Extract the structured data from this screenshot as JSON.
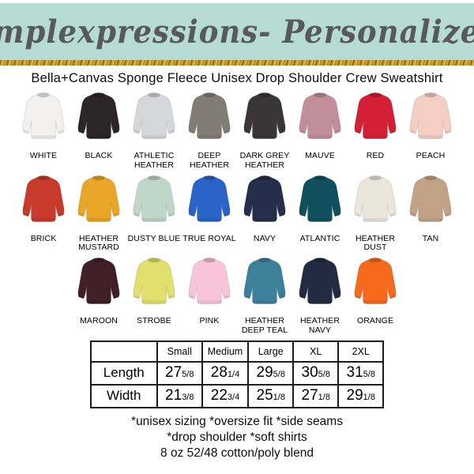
{
  "theme": {
    "banner_bg": "#b5dbd2",
    "banner_text_color": "#58595a",
    "gold_glitter": [
      "#8f6b1f",
      "#caa23d",
      "#e6c968",
      "#b68a2e"
    ],
    "page_bg": "#ffffff",
    "table_border": "#1c1c1c"
  },
  "banner": {
    "title": "Simplexpressions- Personalized!"
  },
  "product_title": "Bella+Canvas Sponge Fleece Unisex Drop Shoulder Crew Sweatshirt",
  "colors": {
    "rows": [
      [
        {
          "name": "WHITE",
          "hex": "#f2f1ef"
        },
        {
          "name": "BLACK",
          "hex": "#2b2527"
        },
        {
          "name": "ATHLETIC HEATHER",
          "hex": "#d5d7db"
        },
        {
          "name": "DEEP HEATHER",
          "hex": "#837c75"
        },
        {
          "name": "DARK GREY HEATHER",
          "hex": "#3a3638"
        },
        {
          "name": "MAUVE",
          "hex": "#c28e9a"
        },
        {
          "name": "RED",
          "hex": "#d42037"
        },
        {
          "name": "PEACH",
          "hex": "#f5cec3"
        }
      ],
      [
        {
          "name": "BRICK",
          "hex": "#c83a2b"
        },
        {
          "name": "HEATHER MUSTARD",
          "hex": "#e9a527"
        },
        {
          "name": "DUSTY BLUE",
          "hex": "#bed7c9"
        },
        {
          "name": "TRUE ROYAL",
          "hex": "#2a63c8"
        },
        {
          "name": "NAVY",
          "hex": "#252e4c"
        },
        {
          "name": "ATLANTIC",
          "hex": "#10505e"
        },
        {
          "name": "HEATHER DUST",
          "hex": "#ebe6dc"
        },
        {
          "name": "TAN",
          "hex": "#c2a287"
        }
      ],
      [
        {
          "name": "MAROON",
          "hex": "#401f29"
        },
        {
          "name": "STROBE",
          "hex": "#dfe06d"
        },
        {
          "name": "PINK",
          "hex": "#f8c4d9"
        },
        {
          "name": "HEATHER DEEP TEAL",
          "hex": "#3d809b"
        },
        {
          "name": "HEATHER NAVY",
          "hex": "#232b43"
        },
        {
          "name": "ORANGE",
          "hex": "#f56a1d"
        }
      ]
    ]
  },
  "size_table": {
    "columns": [
      "Small",
      "Medium",
      "Large",
      "XL",
      "2XL"
    ],
    "rows": [
      {
        "label": "Length",
        "values": [
          {
            "whole": "27",
            "frac": "5/8"
          },
          {
            "whole": "28",
            "frac": "1/4"
          },
          {
            "whole": "29",
            "frac": "5/8"
          },
          {
            "whole": "30",
            "frac": "5/8"
          },
          {
            "whole": "31",
            "frac": "5/8"
          }
        ]
      },
      {
        "label": "Width",
        "values": [
          {
            "whole": "21",
            "frac": "3/8"
          },
          {
            "whole": "22",
            "frac": "3/4"
          },
          {
            "whole": "25",
            "frac": "1/8"
          },
          {
            "whole": "27",
            "frac": "1/8"
          },
          {
            "whole": "29",
            "frac": "1/8"
          }
        ]
      }
    ]
  },
  "footer": {
    "lines": [
      "*unisex sizing *oversize fit *side seams",
      "*drop shoulder *soft shirts",
      "8 oz 52/48 cotton/poly blend"
    ]
  }
}
